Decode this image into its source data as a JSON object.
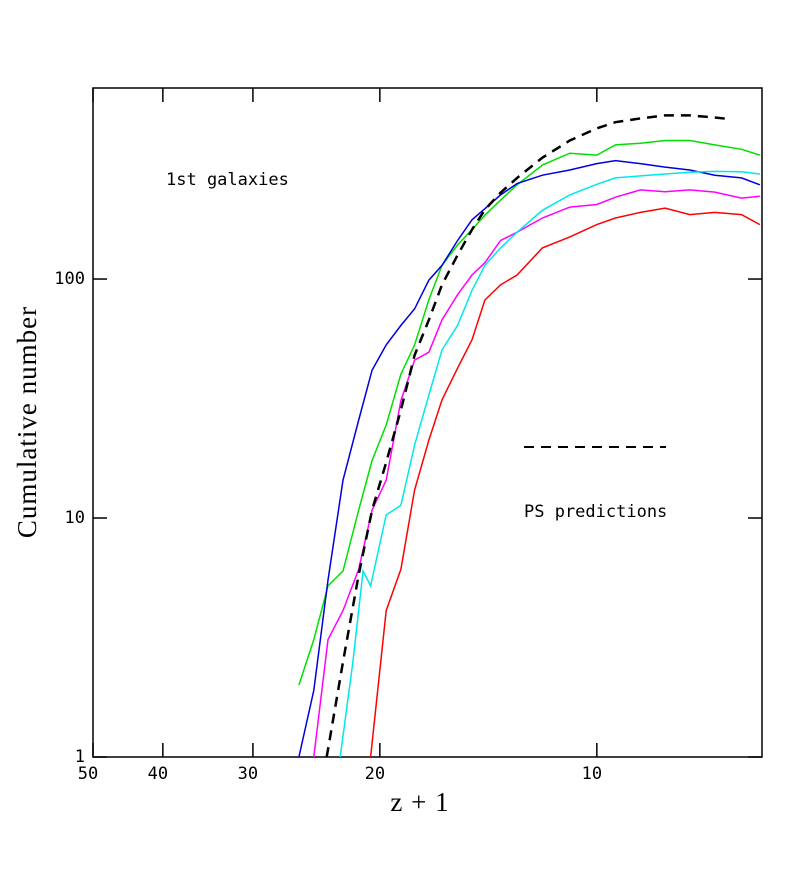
{
  "chart_data": {
    "type": "line",
    "xlabel": "z + 1",
    "ylabel": "Cumulative number",
    "xscale": "log",
    "yscale": "log",
    "xlim": [
      50,
      5.9
    ],
    "ylim": [
      1,
      630
    ],
    "xticks": [
      50,
      40,
      30,
      20,
      10
    ],
    "yticks": [
      1,
      10,
      100
    ],
    "annotations": [
      "1st galaxies"
    ],
    "series": [
      {
        "color": "#00e000",
        "dash": false,
        "x": [
          25.9,
          24.7,
          23.6,
          22.5,
          21.4,
          20.5,
          19.6,
          18.7,
          17.9,
          17.1,
          16.4,
          15.6,
          14.9,
          14.3,
          13.6,
          12.9,
          11.9,
          10.9,
          10,
          9.42,
          8.7,
          8.04,
          7.43,
          6.86,
          6.3,
          5.94
        ],
        "values": [
          2,
          3.1,
          5.2,
          6,
          10.8,
          17.4,
          24.5,
          40,
          53,
          82,
          114,
          139,
          161,
          185,
          214,
          248,
          300,
          336,
          330,
          364,
          370,
          380,
          380,
          364,
          349,
          330
        ]
      },
      {
        "color": "#0000dd",
        "dash": false,
        "x": [
          25.9,
          24.7,
          23.6,
          22.5,
          21.4,
          20.5,
          19.6,
          18.7,
          17.9,
          17.1,
          16.4,
          15.6,
          14.9,
          14.3,
          13.6,
          12.9,
          11.9,
          10.9,
          10,
          9.42,
          8.7,
          8.04,
          7.43,
          6.86,
          6.3,
          5.94
        ],
        "values": [
          1,
          1.9,
          5.5,
          14.4,
          25.7,
          41.6,
          53,
          64,
          75,
          99,
          114,
          145,
          177,
          197,
          225,
          251,
          272,
          286,
          304,
          313,
          304,
          294,
          286,
          272,
          265,
          248
        ]
      },
      {
        "color": "#ff00ff",
        "dash": false,
        "x": [
          24.7,
          23.6,
          22.5,
          21.4,
          20.5,
          19.6,
          18.7,
          17.9,
          17.1,
          16.4,
          15.6,
          14.9,
          14.3,
          13.6,
          12.9,
          11.9,
          10.9,
          10,
          9.42,
          8.7,
          8.04,
          7.43,
          6.86,
          6.3,
          5.94
        ],
        "values": [
          1,
          3.1,
          4.1,
          6.1,
          10.8,
          14.4,
          31,
          45.8,
          49.4,
          67.5,
          86,
          104,
          117,
          145,
          157,
          180,
          200,
          205,
          220,
          236,
          232,
          236,
          231,
          218,
          222
        ]
      },
      {
        "color": "#00e8e8",
        "dash": false,
        "x": [
          22.7,
          21.8,
          21.1,
          20.6,
          19.6,
          18.7,
          17.9,
          17.1,
          16.4,
          15.6,
          14.9,
          14.3,
          13.6,
          12.9,
          11.9,
          10.9,
          10,
          9.42,
          8.7,
          8.04,
          7.43,
          6.86,
          6.3,
          5.94
        ],
        "values": [
          1,
          2.5,
          6,
          5.2,
          10.3,
          11.3,
          20.2,
          32.7,
          50.5,
          64,
          89.6,
          114,
          135,
          157,
          194,
          225,
          249,
          265,
          270,
          275,
          280,
          282,
          281,
          275
        ]
      },
      {
        "color": "#ff0000",
        "dash": false,
        "x": [
          20.6,
          19.6,
          18.7,
          17.9,
          17.1,
          16.4,
          15.6,
          14.9,
          14.3,
          13.6,
          12.9,
          11.9,
          10.9,
          10,
          9.42,
          8.7,
          8.04,
          7.43,
          6.86,
          6.3,
          5.94
        ],
        "values": [
          1,
          4.1,
          6.1,
          13.1,
          21.2,
          31.2,
          42.4,
          55.7,
          81.7,
          94.6,
          104,
          135,
          150,
          169,
          180,
          190,
          198,
          186,
          190,
          186,
          169
        ]
      },
      {
        "name": "PS predictions",
        "color": "#000000",
        "dash": true,
        "x": [
          23.7,
          22.5,
          21.4,
          20.5,
          19.6,
          18.7,
          17.9,
          17.1,
          16.4,
          15.6,
          14.9,
          14.3,
          13.6,
          12.9,
          11.9,
          10.9,
          10,
          9.42,
          8.7,
          8.04,
          7.43,
          6.86,
          6.5
        ],
        "values": [
          1,
          2.5,
          5.8,
          10.8,
          17.1,
          28.3,
          48,
          67.5,
          94.6,
          126,
          161,
          195,
          230,
          265,
          322,
          380,
          427,
          453,
          470,
          484,
          484,
          474,
          466
        ]
      }
    ]
  }
}
